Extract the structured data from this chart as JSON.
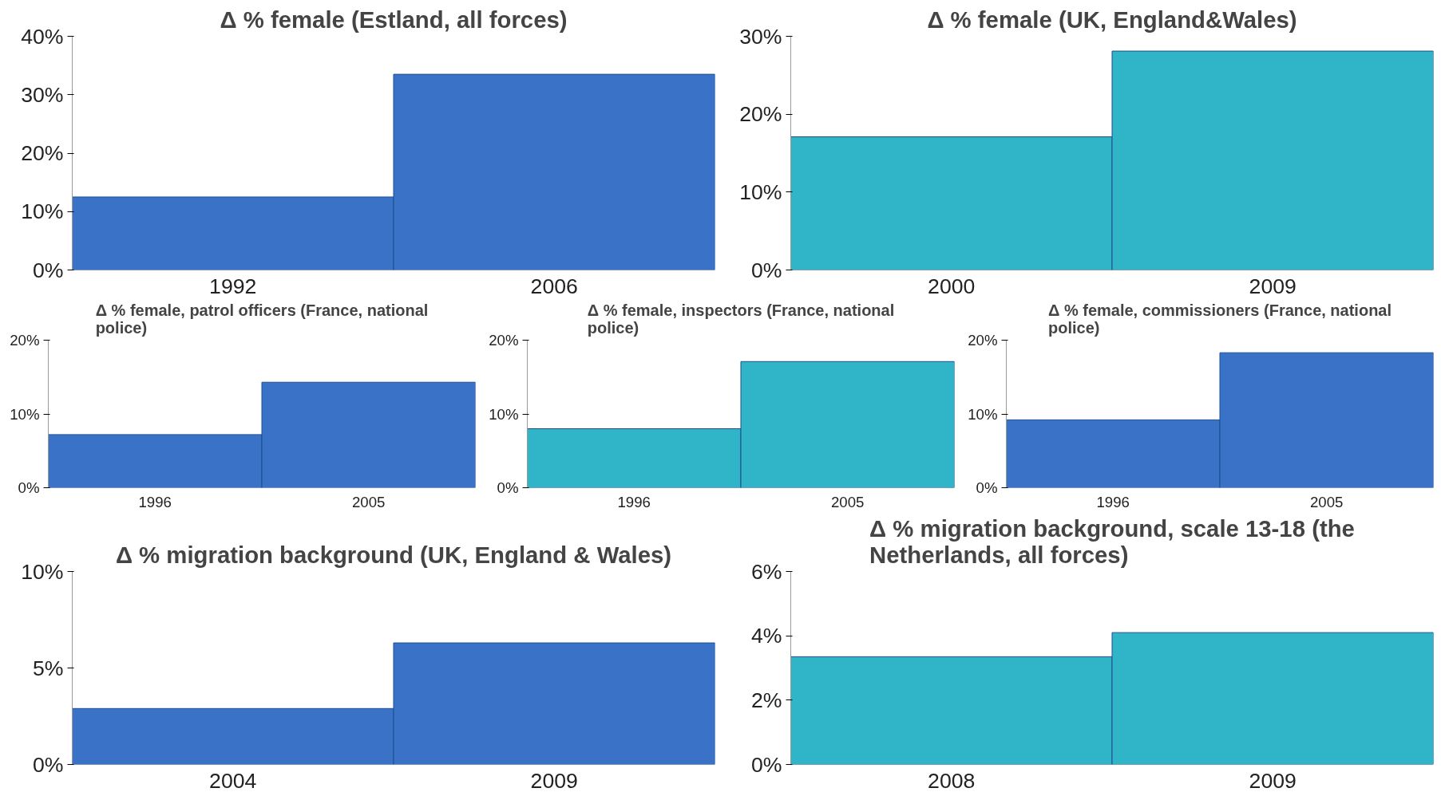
{
  "chart_data": [
    {
      "type": "bar",
      "title": "Δ % female (Estland, all forces)",
      "categories": [
        "1992",
        "2006"
      ],
      "values": [
        12.5,
        33.5
      ],
      "color": "#3a72c8",
      "ylim": [
        0,
        40
      ],
      "yticks": [
        {
          "value": 0,
          "label": "0%"
        },
        {
          "value": 10,
          "label": "10%"
        },
        {
          "value": 20,
          "label": "20%"
        },
        {
          "value": 30,
          "label": "30%"
        },
        {
          "value": 40,
          "label": "40%"
        }
      ],
      "grid": false
    },
    {
      "type": "bar",
      "title": "Δ % female (UK, England&Wales)",
      "categories": [
        "2000",
        "2009"
      ],
      "values": [
        17.1,
        28.1
      ],
      "color": "#30b4c8",
      "ylim": [
        0,
        30
      ],
      "yticks": [
        {
          "value": 0,
          "label": "0%"
        },
        {
          "value": 10,
          "label": "10%"
        },
        {
          "value": 20,
          "label": "20%"
        },
        {
          "value": 30,
          "label": "30%"
        }
      ],
      "grid": false
    },
    {
      "type": "bar",
      "title": "Δ % female, patrol officers (France, national police)",
      "categories": [
        "1996",
        "2005"
      ],
      "values": [
        7.2,
        14.3
      ],
      "color": "#3a72c8",
      "ylim": [
        0,
        20
      ],
      "yticks": [
        {
          "value": 0,
          "label": "0%"
        },
        {
          "value": 10,
          "label": "10%"
        },
        {
          "value": 20,
          "label": "20%"
        }
      ],
      "grid": false
    },
    {
      "type": "bar",
      "title": "Δ % female, inspectors (France, national police)",
      "categories": [
        "1996",
        "2005"
      ],
      "values": [
        8,
        17.1
      ],
      "color": "#30b4c8",
      "ylim": [
        0,
        20
      ],
      "yticks": [
        {
          "value": 0,
          "label": "0%"
        },
        {
          "value": 10,
          "label": "10%"
        },
        {
          "value": 20,
          "label": "20%"
        }
      ],
      "grid": false
    },
    {
      "type": "bar",
      "title": "Δ % female, commissioners (France, national police)",
      "categories": [
        "1996",
        "2005"
      ],
      "values": [
        9.2,
        18.3
      ],
      "color": "#3a72c8",
      "ylim": [
        0,
        20
      ],
      "yticks": [
        {
          "value": 0,
          "label": "0%"
        },
        {
          "value": 10,
          "label": "10%"
        },
        {
          "value": 20,
          "label": "20%"
        }
      ],
      "grid": false
    },
    {
      "type": "bar",
      "title": "Δ % migration background (UK, England & Wales)",
      "categories": [
        "2004",
        "2009"
      ],
      "values": [
        2.9,
        6.3
      ],
      "color": "#3a72c8",
      "ylim": [
        0,
        10
      ],
      "yticks": [
        {
          "value": 0,
          "label": "0%"
        },
        {
          "value": 5,
          "label": "5%"
        },
        {
          "value": 10,
          "label": "10%"
        }
      ],
      "grid": false
    },
    {
      "type": "bar",
      "title": "Δ % migration background, scale 13-18 (the Netherlands, all forces)",
      "categories": [
        "2008",
        "2009"
      ],
      "values": [
        3.35,
        4.1
      ],
      "color": "#30b4c8",
      "ylim": [
        0,
        6
      ],
      "yticks": [
        {
          "value": 0,
          "label": "0%"
        },
        {
          "value": 2,
          "label": "2%"
        },
        {
          "value": 4,
          "label": "4%"
        },
        {
          "value": 6,
          "label": "6%"
        }
      ],
      "grid": false
    }
  ]
}
